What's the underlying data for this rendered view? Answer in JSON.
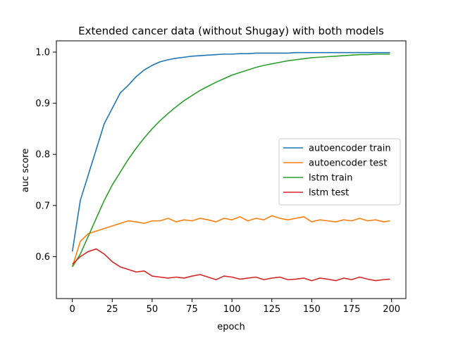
{
  "chart_data": {
    "type": "line",
    "title": "Extended cancer data (without Shugay) with both models",
    "xlabel": "epoch",
    "ylabel": "auc score",
    "xlim": [
      -10,
      209
    ],
    "ylim": [
      0.518,
      1.022
    ],
    "xticks": [
      0,
      25,
      50,
      75,
      100,
      125,
      150,
      175,
      200
    ],
    "yticks": [
      0.6,
      0.7,
      0.8,
      0.9,
      1.0
    ],
    "ytick_labels": [
      "0.6",
      "0.7",
      "0.8",
      "0.9",
      "1.0"
    ],
    "grid": false,
    "legend_position": "center-right",
    "series": [
      {
        "name": "autoencoder train",
        "color": "#1f77b4",
        "x": [
          0,
          5,
          10,
          15,
          20,
          25,
          30,
          35,
          40,
          45,
          50,
          55,
          60,
          65,
          70,
          75,
          80,
          85,
          90,
          95,
          100,
          105,
          110,
          115,
          120,
          125,
          130,
          135,
          140,
          145,
          150,
          155,
          160,
          165,
          170,
          175,
          180,
          185,
          190,
          195,
          199
        ],
        "y": [
          0.61,
          0.71,
          0.76,
          0.81,
          0.86,
          0.89,
          0.92,
          0.935,
          0.952,
          0.965,
          0.974,
          0.981,
          0.985,
          0.988,
          0.99,
          0.992,
          0.993,
          0.994,
          0.995,
          0.996,
          0.996,
          0.997,
          0.997,
          0.998,
          0.998,
          0.998,
          0.998,
          0.998,
          0.999,
          0.999,
          0.999,
          0.999,
          0.999,
          0.999,
          0.999,
          0.999,
          0.999,
          0.999,
          0.999,
          0.999,
          0.999
        ]
      },
      {
        "name": "autoencoder test",
        "color": "#ff7f0e",
        "x": [
          0,
          5,
          10,
          15,
          20,
          25,
          30,
          35,
          40,
          45,
          50,
          55,
          60,
          65,
          70,
          75,
          80,
          85,
          90,
          95,
          100,
          105,
          110,
          115,
          120,
          125,
          130,
          135,
          140,
          145,
          150,
          155,
          160,
          165,
          170,
          175,
          180,
          185,
          190,
          195,
          199
        ],
        "y": [
          0.58,
          0.63,
          0.645,
          0.65,
          0.655,
          0.66,
          0.665,
          0.67,
          0.668,
          0.665,
          0.67,
          0.67,
          0.675,
          0.668,
          0.672,
          0.67,
          0.675,
          0.672,
          0.668,
          0.675,
          0.672,
          0.678,
          0.67,
          0.675,
          0.672,
          0.68,
          0.675,
          0.672,
          0.675,
          0.678,
          0.668,
          0.672,
          0.67,
          0.668,
          0.672,
          0.67,
          0.675,
          0.67,
          0.672,
          0.668,
          0.67
        ]
      },
      {
        "name": "lstm train",
        "color": "#2ca02c",
        "x": [
          0,
          5,
          10,
          15,
          20,
          25,
          30,
          35,
          40,
          45,
          50,
          55,
          60,
          65,
          70,
          75,
          80,
          85,
          90,
          95,
          100,
          105,
          110,
          115,
          120,
          125,
          130,
          135,
          140,
          145,
          150,
          155,
          160,
          165,
          170,
          175,
          180,
          185,
          190,
          195,
          199
        ],
        "y": [
          0.58,
          0.605,
          0.64,
          0.675,
          0.71,
          0.74,
          0.765,
          0.79,
          0.812,
          0.832,
          0.85,
          0.866,
          0.88,
          0.893,
          0.905,
          0.915,
          0.925,
          0.933,
          0.941,
          0.948,
          0.955,
          0.96,
          0.965,
          0.97,
          0.974,
          0.977,
          0.98,
          0.983,
          0.985,
          0.987,
          0.989,
          0.99,
          0.991,
          0.992,
          0.993,
          0.994,
          0.995,
          0.995,
          0.996,
          0.996,
          0.996
        ]
      },
      {
        "name": "lstm test",
        "color": "#d62728",
        "x": [
          0,
          5,
          10,
          15,
          20,
          25,
          30,
          35,
          40,
          45,
          50,
          55,
          60,
          65,
          70,
          75,
          80,
          85,
          90,
          95,
          100,
          105,
          110,
          115,
          120,
          125,
          130,
          135,
          140,
          145,
          150,
          155,
          160,
          165,
          170,
          175,
          180,
          185,
          190,
          195,
          199
        ],
        "y": [
          0.585,
          0.6,
          0.61,
          0.615,
          0.605,
          0.59,
          0.58,
          0.575,
          0.57,
          0.572,
          0.562,
          0.56,
          0.558,
          0.56,
          0.558,
          0.562,
          0.565,
          0.56,
          0.555,
          0.562,
          0.56,
          0.556,
          0.558,
          0.56,
          0.555,
          0.558,
          0.56,
          0.555,
          0.556,
          0.558,
          0.553,
          0.558,
          0.556,
          0.553,
          0.558,
          0.555,
          0.56,
          0.556,
          0.553,
          0.555,
          0.556
        ]
      }
    ]
  }
}
